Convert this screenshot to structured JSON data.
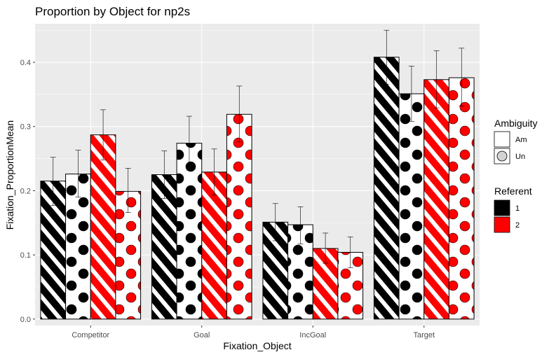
{
  "chart_data": {
    "type": "bar",
    "title": "Proportion by Object for np2s",
    "xlabel": "Fixation_Object",
    "ylabel": "Fixation_ProportionMean",
    "categories": [
      "Competitor",
      "Goal",
      "IncGoal",
      "Target"
    ],
    "ylim": [
      -0.01,
      0.46
    ],
    "yticks": [
      0.0,
      0.1,
      0.2,
      0.3,
      0.4
    ],
    "ytick_labels": [
      "0.0",
      "0.1",
      "0.2",
      "0.3",
      "0.4"
    ],
    "grid": true,
    "background": "#ebebeb",
    "legend_position": "right",
    "series": [
      {
        "referent": "1",
        "ambiguity": "Am",
        "fill": "#000000",
        "pattern": "stripe",
        "values": [
          0.215,
          0.225,
          0.151,
          0.408
        ],
        "error": [
          [
            0.177,
            0.252
          ],
          [
            0.188,
            0.262
          ],
          [
            0.122,
            0.18
          ],
          [
            0.366,
            0.45
          ]
        ]
      },
      {
        "referent": "1",
        "ambiguity": "Un",
        "fill": "#000000",
        "pattern": "circle",
        "values": [
          0.226,
          0.274,
          0.147,
          0.351
        ],
        "error": [
          [
            0.19,
            0.263
          ],
          [
            0.232,
            0.316
          ],
          [
            0.117,
            0.175
          ],
          [
            0.308,
            0.394
          ]
        ]
      },
      {
        "referent": "2",
        "ambiguity": "Am",
        "fill": "#ff0000",
        "pattern": "stripe",
        "values": [
          0.287,
          0.229,
          0.11,
          0.373
        ],
        "error": [
          [
            0.248,
            0.326
          ],
          [
            0.193,
            0.265
          ],
          [
            0.087,
            0.134
          ],
          [
            0.329,
            0.418
          ]
        ]
      },
      {
        "referent": "2",
        "ambiguity": "Un",
        "fill": "#ff0000",
        "pattern": "circle",
        "values": [
          0.199,
          0.319,
          0.104,
          0.376
        ],
        "error": [
          [
            0.166,
            0.235
          ],
          [
            0.276,
            0.363
          ],
          [
            0.08,
            0.128
          ],
          [
            0.332,
            0.422
          ]
        ]
      }
    ],
    "legend": {
      "ambiguity": {
        "title": "Ambiguity",
        "items": [
          {
            "label": "Am",
            "pattern": "stripe"
          },
          {
            "label": "Un",
            "pattern": "circle"
          }
        ]
      },
      "referent": {
        "title": "Referent",
        "items": [
          {
            "label": "1",
            "color": "#000000"
          },
          {
            "label": "2",
            "color": "#ff0000"
          }
        ]
      }
    }
  }
}
